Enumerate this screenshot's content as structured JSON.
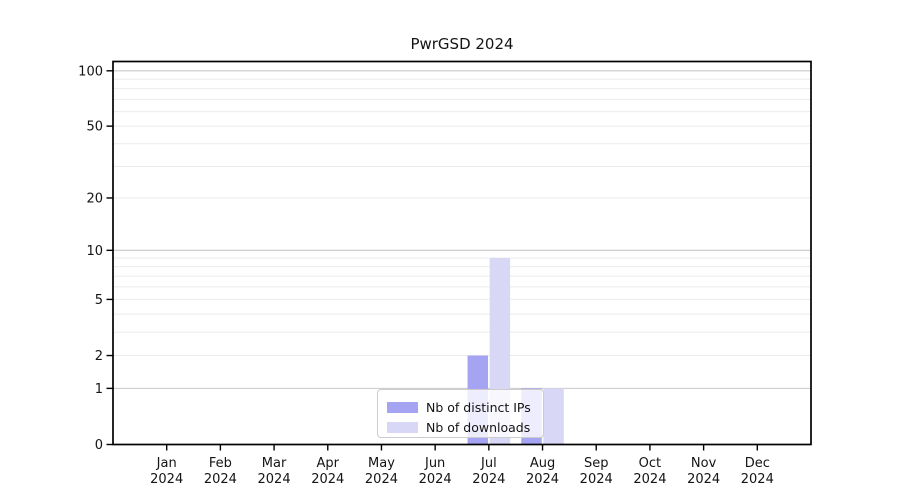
{
  "figure": {
    "title": "PwrGSD 2024",
    "background": "#ffffff"
  },
  "chart_data": {
    "type": "bar",
    "title": "PwrGSD 2024",
    "xlabel": "",
    "ylabel": "",
    "x": {
      "months": [
        "Jan",
        "Feb",
        "Mar",
        "Apr",
        "May",
        "Jun",
        "Jul",
        "Aug",
        "Sep",
        "Oct",
        "Nov",
        "Dec"
      ],
      "year": "2024"
    },
    "series": [
      {
        "name": "Nb of distinct IPs",
        "color": "#a4a4f2",
        "values": [
          0,
          0,
          0,
          0,
          0,
          0,
          2,
          1,
          0,
          0,
          0,
          0
        ]
      },
      {
        "name": "Nb of downloads",
        "color": "#d8d8f6",
        "values": [
          0,
          0,
          0,
          0,
          0,
          0,
          9,
          1,
          0,
          0,
          0,
          0
        ]
      }
    ],
    "y_axis": {
      "scale": "log1p",
      "tick_labels": [
        0,
        1,
        2,
        5,
        10,
        20,
        50,
        100
      ],
      "major_gridlines": [
        1,
        10,
        100
      ],
      "minor_gridlines": [
        2,
        3,
        4,
        5,
        6,
        7,
        8,
        9,
        20,
        30,
        40,
        50,
        60,
        70,
        80,
        90
      ],
      "ymin": 0,
      "ymax": 112
    },
    "grid": "horizontal-only",
    "legend_position": "lower-center"
  },
  "legend": {
    "items": [
      {
        "label": "Nb of distinct IPs",
        "color": "#a4a4f2"
      },
      {
        "label": "Nb of downloads",
        "color": "#d8d8f6"
      }
    ]
  },
  "colors": {
    "axis": "#000000",
    "grid_major": "#c8c8c8",
    "grid_minor": "#ebebeb",
    "text": "#141414",
    "legend_border": "#cccccc",
    "legend_bg": "rgba(255,255,255,0.8)"
  }
}
